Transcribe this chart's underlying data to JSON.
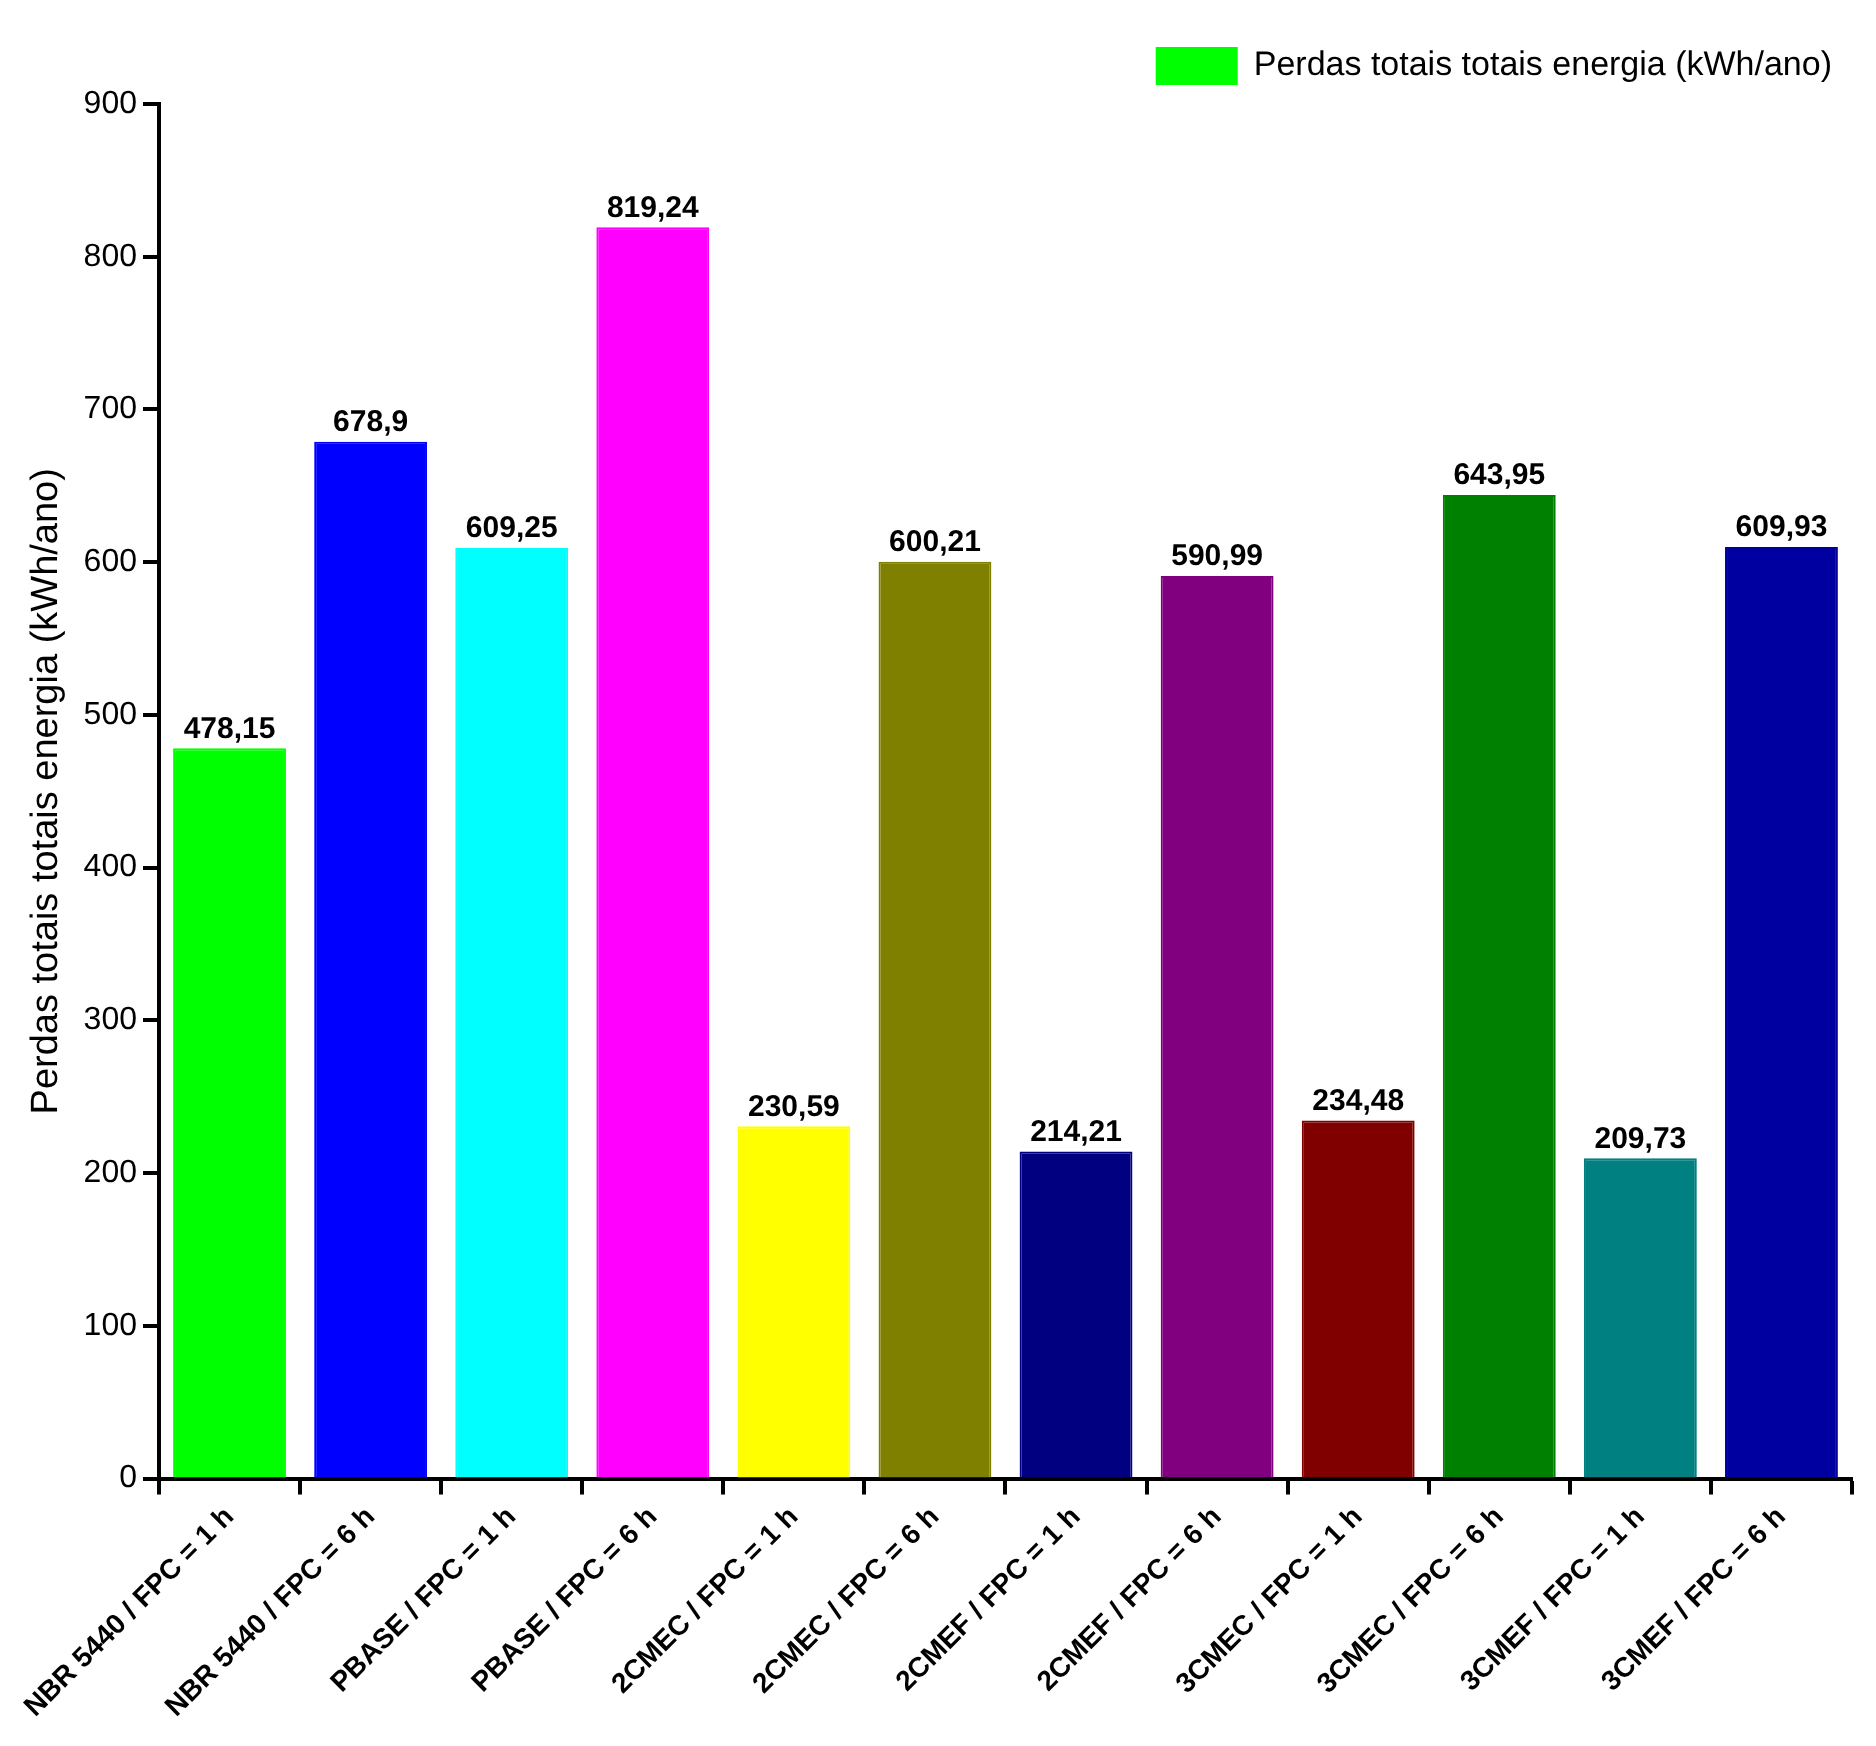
{
  "chart_data": {
    "type": "bar",
    "ylabel": "Perdas totais totais energia (kWh/ano)",
    "categories": [
      "NBR 5440 / FPC = 1 h",
      "NBR 5440 / FPC = 6 h",
      "PBASE / FPC = 1 h",
      "PBASE / FPC = 6 h",
      "2CMEC / FPC = 1 h",
      "2CMEC / FPC = 6 h",
      "2CMEF / FPC = 1 h",
      "2CMEF / FPC = 6 h",
      "3CMEC / FPC = 1 h",
      "3CMEC / FPC = 6 h",
      "3CMEF / FPC = 1 h",
      "3CMEF / FPC = 6 h"
    ],
    "series": [
      {
        "name": "Perdas totais totais energia (kWh/ano)",
        "values": [
          478.15,
          678.9,
          609.25,
          819.24,
          230.59,
          600.21,
          214.21,
          590.99,
          234.48,
          643.95,
          209.73,
          609.93
        ],
        "colors": [
          "#00ff00",
          "#0000ff",
          "#00ffff",
          "#ff00ff",
          "#ffff00",
          "#808000",
          "#000080",
          "#800080",
          "#800000",
          "#008000",
          "#008080",
          "#0000a0"
        ],
        "value_labels": [
          "478,15",
          "678,9",
          "609,25",
          "819,24",
          "230,59",
          "600,21",
          "214,21",
          "590,99",
          "234,48",
          "643,95",
          "209,73",
          "609,93"
        ]
      }
    ],
    "ylim": [
      0,
      900
    ],
    "yticks": [
      0,
      100,
      200,
      300,
      400,
      500,
      600,
      700,
      800,
      900
    ],
    "grid": false,
    "legend": "top right"
  }
}
